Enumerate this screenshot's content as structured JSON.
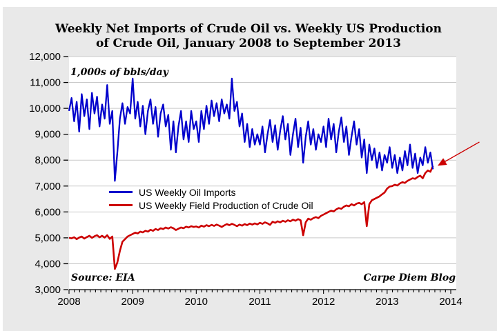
{
  "title": {
    "line1": "Weekly Net Imports of Crude Oil vs. Weekly US Production",
    "line2": "of Crude Oil, January 2008 to September 2013"
  },
  "annotations": {
    "units_label": "1,000s of bbls/day",
    "source": "Source: EIA",
    "credit": "Carpe Diem Blog"
  },
  "colors": {
    "frame_background": "#e9e9e9",
    "plot_background": "#ffffff",
    "gridline": "#c9c9c9",
    "axis": "#000000",
    "imports_line": "#0000cc",
    "production_line": "#cc0000",
    "arrow": "#cc0000"
  },
  "legend": {
    "items": [
      {
        "label": "US Weekly Oil Imports",
        "color": "#0000cc"
      },
      {
        "label": "US Weekly Field Production of Crude Oil",
        "color": "#cc0000"
      }
    ]
  },
  "chart_data": {
    "type": "line",
    "title": "Weekly Net Imports of Crude Oil vs. Weekly US Production of Crude Oil, January 2008 to September 2013",
    "xlabel": "",
    "ylabel": "1,000s of bbls/day",
    "ylim": [
      3000,
      12000
    ],
    "ytick_step": 1000,
    "xlim": [
      2008,
      2014.09
    ],
    "xticks": [
      2008,
      2009,
      2010,
      2011,
      2012,
      2013,
      2014
    ],
    "minor_xtick_interval_years": 0.0833,
    "grid": "horizontal",
    "legend_position": "inside-center-left",
    "x_start": 2008.0,
    "x_step": 0.04,
    "series": [
      {
        "name": "US Weekly Oil Imports",
        "color": "#0000cc",
        "values": [
          9900,
          10400,
          9500,
          10250,
          9100,
          10550,
          9700,
          10350,
          9200,
          10600,
          9800,
          10450,
          9300,
          10150,
          9600,
          10900,
          9400,
          9900,
          7200,
          8300,
          9600,
          10200,
          9400,
          10050,
          9800,
          11150,
          9600,
          10250,
          9300,
          10100,
          9000,
          9900,
          10350,
          9400,
          10050,
          8900,
          9800,
          10150,
          9300,
          9750,
          8400,
          9500,
          8300,
          9300,
          9900,
          8800,
          9500,
          8700,
          9900,
          9200,
          9500,
          8700,
          9900,
          9200,
          10100,
          9400,
          10300,
          9700,
          10200,
          9500,
          10350,
          9800,
          10150,
          9600,
          11150,
          9900,
          10250,
          9300,
          9800,
          8700,
          9400,
          8500,
          9200,
          8600,
          9000,
          8600,
          9300,
          8300,
          9000,
          9550,
          8700,
          9350,
          8400,
          9150,
          9700,
          8800,
          9400,
          8200,
          9000,
          9600,
          8500,
          9250,
          7900,
          8900,
          9500,
          8600,
          9200,
          8400,
          9000,
          8700,
          9300,
          8500,
          9600,
          8800,
          9400,
          8300,
          9100,
          9650,
          8700,
          9300,
          8200,
          8900,
          9500,
          8600,
          9200,
          8100,
          8800,
          7500,
          8600,
          8000,
          8450,
          7700,
          8300,
          7600,
          8200,
          7900,
          8500,
          7700,
          8200,
          7500,
          8100,
          7600,
          8350,
          7800,
          8600,
          7700,
          8250,
          7500,
          8100,
          7800,
          8500,
          7900,
          8300,
          7650
        ]
      },
      {
        "name": "US Weekly Field Production of Crude Oil",
        "color": "#cc0000",
        "values": [
          5000,
          4980,
          5020,
          4950,
          5010,
          5050,
          4970,
          5030,
          5080,
          5000,
          5060,
          5100,
          5020,
          5080,
          5010,
          5100,
          4960,
          5050,
          3800,
          4050,
          4500,
          4850,
          4950,
          5050,
          5100,
          5150,
          5200,
          5170,
          5240,
          5210,
          5270,
          5240,
          5310,
          5270,
          5340,
          5300,
          5370,
          5340,
          5400,
          5360,
          5410,
          5370,
          5300,
          5350,
          5400,
          5370,
          5430,
          5400,
          5450,
          5420,
          5440,
          5400,
          5470,
          5430,
          5490,
          5450,
          5500,
          5460,
          5510,
          5470,
          5420,
          5480,
          5530,
          5490,
          5540,
          5500,
          5450,
          5510,
          5470,
          5530,
          5490,
          5550,
          5510,
          5560,
          5520,
          5580,
          5540,
          5600,
          5560,
          5500,
          5620,
          5580,
          5640,
          5600,
          5660,
          5620,
          5680,
          5640,
          5700,
          5660,
          5720,
          5680,
          5100,
          5600,
          5740,
          5700,
          5760,
          5800,
          5760,
          5850,
          5900,
          5950,
          6000,
          6050,
          6020,
          6100,
          6150,
          6120,
          6200,
          6250,
          6220,
          6300,
          6250,
          6320,
          6350,
          6300,
          6380,
          5450,
          6300,
          6450,
          6500,
          6550,
          6600,
          6680,
          6750,
          6900,
          6980,
          7000,
          7050,
          7020,
          7100,
          7150,
          7120,
          7200,
          7250,
          7300,
          7280,
          7350,
          7400,
          7300,
          7500,
          7600,
          7550,
          7780
        ]
      }
    ],
    "annotations": [
      {
        "type": "arrow",
        "color": "#cc0000",
        "from": {
          "x": 2014.45,
          "y": 8700
        },
        "to": {
          "x": 2013.82,
          "y": 7820
        }
      }
    ]
  }
}
